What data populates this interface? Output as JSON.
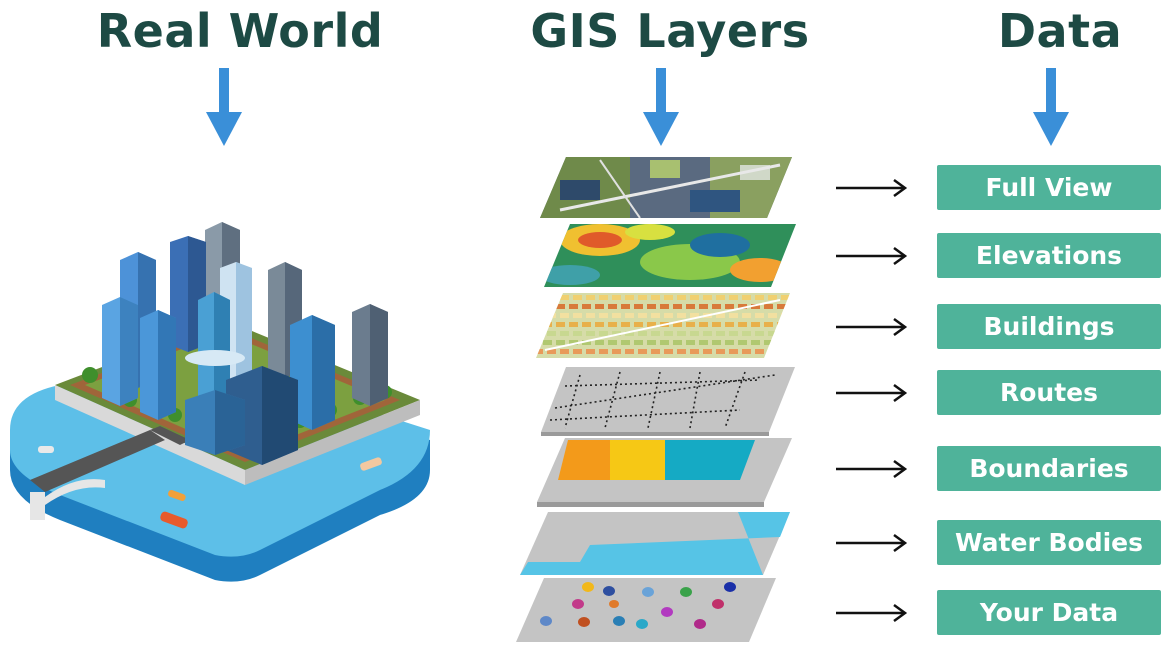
{
  "titles": {
    "real_world": "Real World",
    "gis_layers": "GIS Layers",
    "data": "Data"
  },
  "layers": [
    {
      "label": "Full View"
    },
    {
      "label": "Elevations"
    },
    {
      "label": "Buildings"
    },
    {
      "label": "Routes"
    },
    {
      "label": "Boundaries"
    },
    {
      "label": "Water Bodies"
    },
    {
      "label": "Your Data"
    }
  ],
  "colors": {
    "title": "#1d4a44",
    "label_bg": "#4fb39a",
    "down_arrow": "#3a8fd8",
    "layer_gray": "#c4c4c4",
    "water": "#56c4e6",
    "boundary_orange": "#f39a1a",
    "boundary_yellow": "#f6c815",
    "boundary_teal": "#15aac4"
  }
}
